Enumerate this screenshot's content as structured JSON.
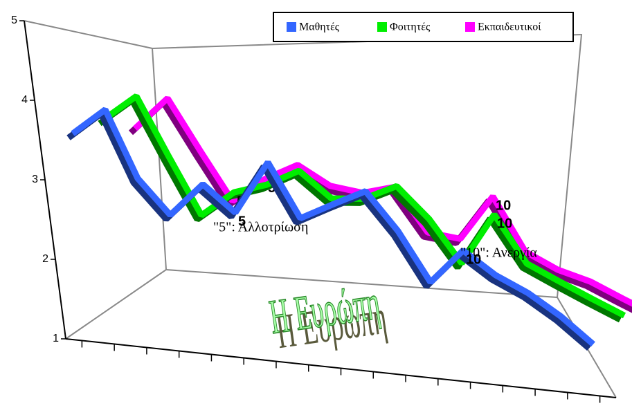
{
  "chart_data": {
    "type": "line",
    "categories": [
      null,
      null,
      null,
      null,
      null,
      null,
      null,
      null,
      null,
      null,
      null,
      null,
      null,
      null,
      null,
      null,
      null
    ],
    "series": [
      {
        "name": "Μαθητές",
        "color": "#3366ff",
        "values": [
          3.6,
          4.0,
          3.2,
          2.8,
          3.3,
          3.0,
          3.8,
          3.1,
          3.4,
          3.7,
          3.2,
          2.5,
          3.1,
          2.8,
          2.6,
          2.3,
          1.9
        ],
        "labels": [
          null,
          null,
          null,
          null,
          null,
          "5",
          null,
          null,
          null,
          null,
          null,
          null,
          "10",
          null,
          null,
          null,
          null
        ]
      },
      {
        "name": "Φοιτητές",
        "color": "#00ee00",
        "values": [
          3.8,
          4.2,
          3.5,
          2.8,
          3.2,
          3.4,
          3.7,
          3.4,
          3.5,
          3.8,
          3.4,
          2.8,
          3.7,
          3.0,
          2.8,
          2.6,
          2.4
        ],
        "labels": [
          null,
          null,
          null,
          null,
          "5",
          null,
          null,
          null,
          null,
          null,
          null,
          null,
          "10",
          null,
          null,
          null,
          null
        ]
      },
      {
        "name": "Εκπαιδευτικοί",
        "color": "#ff00ff",
        "values": [
          3.7,
          4.2,
          3.6,
          3.0,
          3.4,
          3.7,
          3.5,
          3.5,
          3.7,
          3.1,
          3.1,
          3.9,
          3.1,
          2.9,
          2.8,
          2.6,
          2.4
        ],
        "labels": [
          null,
          null,
          null,
          null,
          "5",
          null,
          null,
          null,
          null,
          null,
          null,
          "10",
          null,
          null,
          null,
          null,
          null
        ]
      }
    ],
    "ylim": [
      1,
      5
    ],
    "yticks": [
      1,
      2,
      3,
      4,
      5
    ],
    "annotations": [
      "\"5\": Αλλοτρίωση",
      "\"10\": Ανεργία"
    ],
    "wordart": "Η Ευρώπη"
  }
}
